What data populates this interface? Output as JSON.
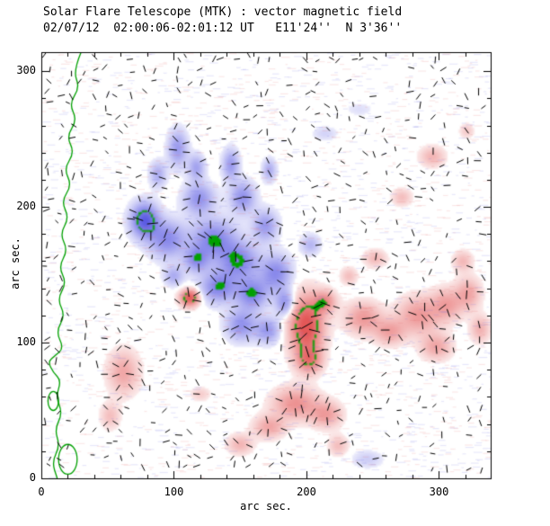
{
  "header": {
    "title": "Solar Flare Telescope (MTK) : vector magnetic field",
    "subtitle": "02/07/12  02:00:06-02:01:12 UT   E11'24''  N 3'36''"
  },
  "axes": {
    "xlabel": "arc sec.",
    "ylabel": "arc sec.",
    "xticks": [
      0,
      100,
      200,
      300
    ],
    "yticks": [
      0,
      100,
      200,
      300
    ],
    "xlim": [
      0,
      339
    ],
    "ylim": [
      0,
      314
    ],
    "minor_step": 20
  },
  "chart_data": {
    "type": "heatmap",
    "title": "Solar Flare Telescope (MTK) : vector magnetic field",
    "subtitle": "02/07/12  02:00:06-02:01:12 UT   E11'24''  N 3'36''",
    "xlabel": "arc sec.",
    "ylabel": "arc sec.",
    "xlim": [
      0,
      339
    ],
    "ylim": [
      0,
      314
    ],
    "legend": "red = positive polarity, blue = negative polarity, green = contour, ticks = transverse field vectors",
    "colors": {
      "positive": "#e14848",
      "negative": "#4a4ae0",
      "contour": "#00a000",
      "vectors": "#000000",
      "background": "#ffffff"
    },
    "contour_level": 0.62,
    "blobs": [
      [
        103,
        243,
        7,
        13,
        -0.45
      ],
      [
        88,
        224,
        6,
        9,
        -0.35
      ],
      [
        78,
        190,
        10,
        12,
        -0.85
      ],
      [
        95,
        176,
        13,
        13,
        -0.55
      ],
      [
        119,
        206,
        11,
        11,
        -0.5
      ],
      [
        117,
        229,
        6,
        9,
        -0.4
      ],
      [
        143,
        231,
        6,
        11,
        -0.45
      ],
      [
        152,
        207,
        9,
        11,
        -0.5
      ],
      [
        130,
        176,
        16,
        14,
        -0.6
      ],
      [
        149,
        160,
        14,
        13,
        -0.6
      ],
      [
        169,
        186,
        9,
        11,
        -0.45
      ],
      [
        172,
        227,
        5,
        8,
        -0.35
      ],
      [
        134,
        141,
        13,
        11,
        -0.6
      ],
      [
        159,
        136,
        11,
        11,
        -0.6
      ],
      [
        177,
        151,
        11,
        13,
        -0.55
      ],
      [
        151,
        113,
        11,
        11,
        -0.5
      ],
      [
        171,
        109,
        9,
        9,
        -0.45
      ],
      [
        184,
        129,
        7,
        9,
        -0.5
      ],
      [
        117,
        161,
        9,
        9,
        -0.5
      ],
      [
        203,
        172,
        7,
        7,
        -0.3
      ],
      [
        100,
        149,
        7,
        7,
        -0.35
      ],
      [
        214,
        254,
        9,
        5,
        -0.15
      ],
      [
        240,
        272,
        10,
        5,
        -0.1
      ],
      [
        246,
        14,
        11,
        6,
        -0.18
      ],
      [
        112,
        133,
        7,
        6,
        0.9
      ],
      [
        200,
        112,
        12,
        21,
        0.95
      ],
      [
        202,
        87,
        9,
        9,
        0.55
      ],
      [
        214,
        130,
        8,
        8,
        0.5
      ],
      [
        243,
        118,
        13,
        11,
        0.45
      ],
      [
        263,
        108,
        11,
        9,
        0.4
      ],
      [
        285,
        120,
        15,
        13,
        0.45
      ],
      [
        306,
        128,
        11,
        11,
        0.4
      ],
      [
        322,
        136,
        9,
        11,
        0.38
      ],
      [
        331,
        110,
        7,
        9,
        0.32
      ],
      [
        298,
        97,
        11,
        9,
        0.38
      ],
      [
        318,
        160,
        7,
        7,
        0.28
      ],
      [
        252,
        162,
        8,
        6,
        0.28
      ],
      [
        232,
        149,
        6,
        6,
        0.25
      ],
      [
        192,
        55,
        16,
        11,
        0.5
      ],
      [
        215,
        47,
        11,
        9,
        0.42
      ],
      [
        172,
        38,
        11,
        8,
        0.38
      ],
      [
        150,
        25,
        9,
        7,
        0.3
      ],
      [
        224,
        24,
        7,
        7,
        0.25
      ],
      [
        62,
        78,
        11,
        15,
        0.38
      ],
      [
        52,
        46,
        7,
        9,
        0.25
      ],
      [
        295,
        237,
        9,
        7,
        0.3
      ],
      [
        272,
        207,
        7,
        6,
        0.25
      ],
      [
        321,
        256,
        5,
        5,
        0.2
      ],
      [
        120,
        62,
        7,
        5,
        0.18
      ]
    ],
    "neutral_line": [
      [
        30,
        314
      ],
      [
        24,
        300
      ],
      [
        29,
        288
      ],
      [
        21,
        276
      ],
      [
        27,
        264
      ],
      [
        19,
        252
      ],
      [
        25,
        240
      ],
      [
        17,
        228
      ],
      [
        23,
        216
      ],
      [
        15,
        204
      ],
      [
        21,
        192
      ],
      [
        14,
        180
      ],
      [
        20,
        168
      ],
      [
        13,
        156
      ],
      [
        19,
        144
      ],
      [
        12,
        132
      ],
      [
        18,
        120
      ],
      [
        11,
        108
      ],
      [
        17,
        96
      ],
      [
        10,
        90
      ],
      [
        5,
        86
      ],
      [
        9,
        78
      ],
      [
        15,
        72
      ],
      [
        11,
        60
      ],
      [
        16,
        48
      ],
      [
        10,
        36
      ],
      [
        14,
        24
      ],
      [
        8,
        12
      ],
      [
        12,
        0
      ]
    ],
    "loops": [
      [
        20,
        14,
        7,
        11
      ],
      [
        9,
        57,
        4,
        7
      ]
    ],
    "vector_field": {
      "grid_step": 13,
      "seed": 7,
      "quiet_len": [
        4.5,
        8.5
      ],
      "active_len": [
        6,
        15
      ],
      "quiet_skip": 0.5
    },
    "noise": {
      "count": 2600,
      "seed": 13,
      "alpha": 0.16
    }
  }
}
